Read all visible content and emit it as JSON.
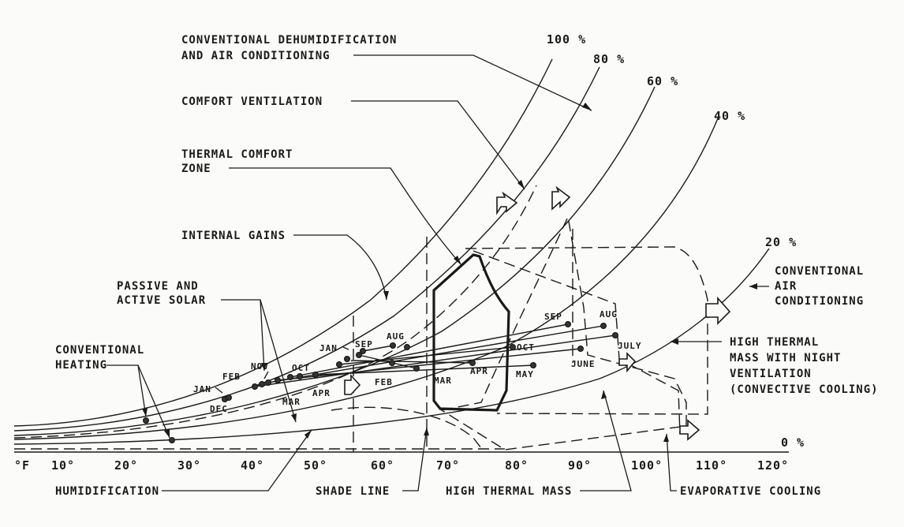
{
  "strategies": {
    "conventional_dehumidification_1": "CONVENTIONAL DEHUMIDIFICATION",
    "conventional_dehumidification_2": "AND AIR CONDITIONING",
    "comfort_ventilation": "COMFORT VENTILATION",
    "thermal_comfort_zone_1": "THERMAL COMFORT",
    "thermal_comfort_zone_2": "ZONE",
    "internal_gains": "INTERNAL GAINS",
    "passive_active_solar_1": "PASSIVE AND",
    "passive_active_solar_2": "ACTIVE SOLAR",
    "conventional_heating_1": "CONVENTIONAL",
    "conventional_heating_2": "HEATING",
    "conventional_air_conditioning_1": "CONVENTIONAL",
    "conventional_air_conditioning_2": "AIR",
    "conventional_air_conditioning_3": "CONDITIONING",
    "high_thermal_mass_night_1": "HIGH THERMAL",
    "high_thermal_mass_night_2": "MASS WITH NIGHT",
    "high_thermal_mass_night_3": "VENTILATION",
    "high_thermal_mass_night_4": "(CONVECTIVE COOLING)",
    "humidification": "HUMIDIFICATION",
    "shade_line": "SHADE LINE",
    "high_thermal_mass": "HIGH THERMAL MASS",
    "evaporative_cooling": "EVAPORATIVE COOLING"
  },
  "humidity_curves": [
    "100 %",
    "80 %",
    "60 %",
    "40 %",
    "20 %",
    "0 %"
  ],
  "axis": {
    "unit": "°F",
    "ticks": [
      "10°",
      "20°",
      "30°",
      "40°",
      "50°",
      "60°",
      "70°",
      "80°",
      "90°",
      "100°",
      "110°",
      "120°"
    ]
  },
  "months": {
    "jan_low": "JAN",
    "feb_low": "FEB",
    "dec": "DEC",
    "nov": "NOV",
    "oct_low": "OCT",
    "apr_low": "APR",
    "mar_low": "MAR",
    "jan_mid": "JAN",
    "sep_low": "SEP",
    "aug_low": "AUG",
    "feb_high": "FEB",
    "mar_high": "MAR",
    "apr_high": "APR",
    "may": "MAY",
    "june": "JUNE",
    "oct_high": "OCT",
    "sep_high": "SEP",
    "aug_high": "AUG",
    "july": "JULY"
  }
}
